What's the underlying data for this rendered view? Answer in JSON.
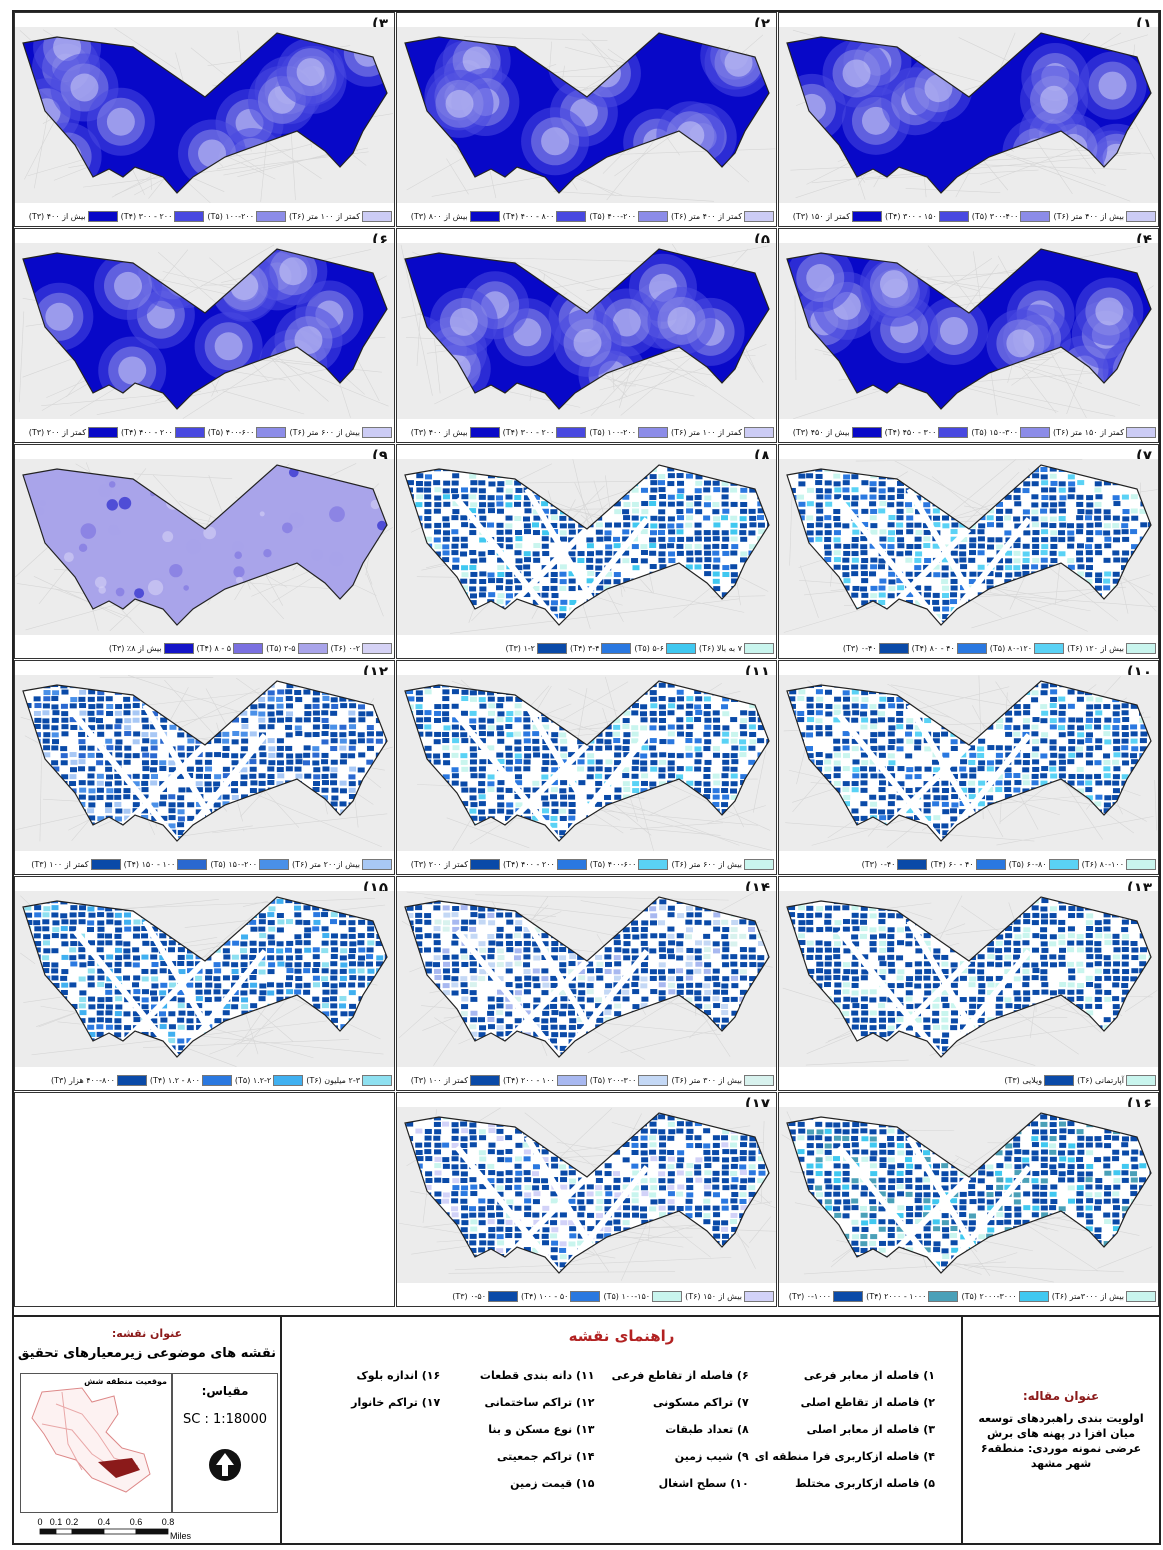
{
  "panels": [
    {
      "num": "(۳",
      "legend": [
        "کمتر از ۱۰۰ متر (T۶)",
        "۱۰۰-۲۰۰ (T۵)",
        "۲۰۰ - ۳۰۰ (T۴)",
        "بیش از ۴۰۰ (T۳)"
      ],
      "colors": [
        "#ccccf5",
        "#8c8ce8",
        "#4848e0",
        "#0808c8"
      ],
      "style": "dist"
    },
    {
      "num": "(۲",
      "legend": [
        "کمتر از ۴۰۰ متر (T۶)",
        "۴۰۰-۲۰۰ (T۵)",
        "۸۰۰ - ۴۰۰ (T۴)",
        "بیش از ۸۰۰ (T۳)"
      ],
      "colors": [
        "#ccccf5",
        "#8c8ce8",
        "#4848e0",
        "#0808c8"
      ],
      "style": "dist"
    },
    {
      "num": "(۱",
      "legend": [
        "بیش از ۴۰۰ متر (T۶)",
        "۳۰۰-۴۰۰ (T۵)",
        "۱۵۰ - ۳۰۰ (T۴)",
        "کمتر از ۱۵۰ (T۳)"
      ],
      "colors": [
        "#ccccf5",
        "#8c8ce8",
        "#4848e0",
        "#0808c8"
      ],
      "style": "dist"
    },
    {
      "num": "(۶",
      "legend": [
        "بیش از ۶۰۰ متر (T۶)",
        "۴۰۰-۶۰۰ (T۵)",
        "۲۰۰ - ۴۰۰ (T۴)",
        "کمتر از ۲۰۰ (T۳)"
      ],
      "colors": [
        "#ccccf5",
        "#8c8ce8",
        "#4848e0",
        "#0808c8"
      ],
      "style": "dist"
    },
    {
      "num": "(۵",
      "legend": [
        "کمتر از ۱۰۰ متر (T۶)",
        "۱۰۰-۲۰۰ (T۵)",
        "۲۰۰ - ۳۰۰ (T۴)",
        "بیش از ۴۰۰ (T۳)"
      ],
      "colors": [
        "#ccccf5",
        "#8c8ce8",
        "#4848e0",
        "#0808c8"
      ],
      "style": "dist"
    },
    {
      "num": "(۴",
      "legend": [
        "کمتر از ۱۵۰ متر (T۶)",
        "۱۵۰-۳۰۰ (T۵)",
        "۳۰۰ - ۴۵۰ (T۴)",
        "بیش از ۴۵۰ (T۳)"
      ],
      "colors": [
        "#ccccf5",
        "#8c8ce8",
        "#4848e0",
        "#0808c8"
      ],
      "style": "dist"
    },
    {
      "num": "(۹",
      "legend": [
        "۰-۲ (T۶)",
        "۲-۵ (T۵)",
        "۵ - ۸ (T۴)",
        "بیش از ۸٪ (T۳)"
      ],
      "colors": [
        "#d5d2f5",
        "#a9a4ea",
        "#7a70e0",
        "#1414c8"
      ],
      "style": "slope"
    },
    {
      "num": "(۸",
      "legend": [
        "۷ به بالا (T۶)",
        "۵-۶ (T۵)",
        "۳-۴ (T۴)",
        "۱-۲ (T۳)"
      ],
      "colors": [
        "#c9f5ee",
        "#40c8f0",
        "#2a78e0",
        "#0a4aa8"
      ],
      "style": "parcel"
    },
    {
      "num": "(۷",
      "legend": [
        "بیش از ۱۲۰ (T۶)",
        "۸۰-۱۲۰ (T۵)",
        "۴۰ - ۸۰ (T۴)",
        "۰-۴۰ (T۳)"
      ],
      "colors": [
        "#c9f5ee",
        "#5ad2f5",
        "#2a78e0",
        "#0a4aa8"
      ],
      "style": "parcel"
    },
    {
      "num": "(۱۲",
      "legend": [
        "بیش از۲۰۰ متر (T۶)",
        "۱۵۰-۲۰۰ (T۵)",
        "۱۰۰ - ۱۵۰ (T۴)",
        "کمتر از ۱۰۰ (T۳)"
      ],
      "colors": [
        "#a8c8f5",
        "#4a90e8",
        "#2a68d0",
        "#0a4aa8"
      ],
      "style": "parcel"
    },
    {
      "num": "(۱۱",
      "legend": [
        "بیش از ۶۰۰ متر (T۶)",
        "۴۰۰-۶۰۰ (T۵)",
        "۲۰۰ - ۴۰۰ (T۴)",
        "کمتر از ۲۰۰ (T۳)"
      ],
      "colors": [
        "#c9f5ee",
        "#5ad2f5",
        "#2a78e0",
        "#0a4aa8"
      ],
      "style": "parcel"
    },
    {
      "num": "(۱۰",
      "legend": [
        "۸۰-۱۰۰ (T۶)",
        "۶۰-۸۰ (T۵)",
        "۴۰ - ۶۰ (T۴)",
        "۰-۴۰ (T۳)"
      ],
      "colors": [
        "#c9f5ee",
        "#5ad2f5",
        "#2a78e0",
        "#0a4aa8"
      ],
      "style": "parcel"
    },
    {
      "num": "(۱۵",
      "legend": [
        "۲-۳ میلیون (T۶)",
        "۱.۲-۲ (T۵)",
        "۸۰۰ - ۱.۲ (T۴)",
        "۴۰۰-۸۰۰ هزار (T۳)"
      ],
      "colors": [
        "#8ee0f0",
        "#40b0f0",
        "#2a78e0",
        "#0a4aa8"
      ],
      "style": "parcel"
    },
    {
      "num": "(۱۴",
      "legend": [
        "بیش از ۳۰۰ متر (T۶)",
        "۲۰۰-۳۰۰ (T۵)",
        "۱۰۰ - ۲۰۰ (T۴)",
        "کمتر از ۱۰۰ (T۳)"
      ],
      "colors": [
        "#d8f2ee",
        "#c4d8f5",
        "#a8b8f0",
        "#0a4aa8"
      ],
      "style": "parcel"
    },
    {
      "num": "(۱۳",
      "legend": [
        "آپارتمانی (T۶)",
        "ویلایی (T۳)"
      ],
      "colors": [
        "#c9f5ee",
        "#0a4aa8"
      ],
      "style": "parcel"
    },
    {
      "num": "",
      "legend": [],
      "colors": [],
      "style": "empty"
    },
    {
      "num": "(۱۷",
      "legend": [
        "بیش از ۱۵۰ (T۶)",
        "۱۰۰-۱۵۰ (T۵)",
        "۵۰ - ۱۰۰ (T۴)",
        "۰-۵۰ (T۳)"
      ],
      "colors": [
        "#d2d2f8",
        "#c9f5ee",
        "#2a78e0",
        "#0a4aa8"
      ],
      "style": "parcel"
    },
    {
      "num": "(۱۶",
      "legend": [
        "بیش از ۳۰۰۰متر (T۶)",
        "۲۰۰۰-۳۰۰۰ (T۵)",
        "۱۰۰۰ - ۲۰۰۰ (T۴)",
        "۰-۱۰۰۰ (T۳)"
      ],
      "colors": [
        "#c9f5ee",
        "#40c8f0",
        "#4aa0b8",
        "#0a4aa8"
      ],
      "style": "parcel"
    }
  ],
  "article": {
    "heading": "عنوان مقاله:",
    "title": "اولویت بندی راهبردهای توسعه میان افزا در پهنه های برش عرضی نمونه موردی: منطقه۶ شهر مشهد"
  },
  "map_legend": {
    "heading": "راهنمای نقشه",
    "items": [
      "۱) فاصله از معابر فرعی",
      "۲) فاصله از تقاطع اصلی",
      "۳) فاصله از معابر اصلی",
      "۴) فاصله ازکاربری فرا منطقه ای",
      "۵) فاصله ازکاربری مختلط",
      "۶) فاصله از تقاطع فرعی",
      "۷) تراکم مسکونی",
      "۸) تعداد طبقات",
      "۹) شیب زمین",
      "۱۰) سطح اشغال",
      "۱۱) دانه بندی قطعات",
      "۱۲) تراکم ساختمانی",
      "۱۳) نوع مسکن و بنا",
      "۱۴) تراکم جمعیتی",
      "۱۵) قیمت زمین",
      "۱۶) اندازه بلوک",
      "۱۷) تراکم خانوار",
      "",
      "",
      ""
    ]
  },
  "map_info": {
    "heading": "عنوان نقشه:",
    "title": "نقشه های موضوعی زیرمعیارهای تحقیق",
    "inset_caption": "موقعیت منطقه شش",
    "scale_label": "مقیاس:",
    "scale_value": "SC : 1:18000",
    "scalebar_ticks": [
      "0",
      "0.1",
      "0.2",
      "0.4",
      "0.6",
      "0.8"
    ],
    "scalebar_unit": "Miles"
  }
}
